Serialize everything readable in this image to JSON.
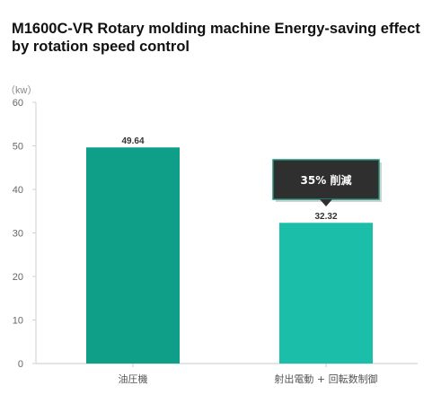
{
  "chart_data": {
    "type": "bar",
    "title": "M1600C-VR Rotary molding machine Energy-saving effect by rotation speed control",
    "ylabel": "（kw）",
    "xlabel": "",
    "ylim": [
      0,
      60
    ],
    "yticks": [
      0,
      10,
      20,
      30,
      40,
      50,
      60
    ],
    "categories": [
      "油圧機",
      "射出電動 + 回転数制御"
    ],
    "values": [
      49.64,
      32.32
    ],
    "value_labels": [
      "49.64",
      "32.32"
    ],
    "bar_colors": [
      "#0f9e88",
      "#1bbfa9"
    ],
    "grid": false,
    "annotation": {
      "text": "35% 削減",
      "target_category_index": 1,
      "background": "#2f2f2f",
      "border": "#1f8f78"
    }
  }
}
